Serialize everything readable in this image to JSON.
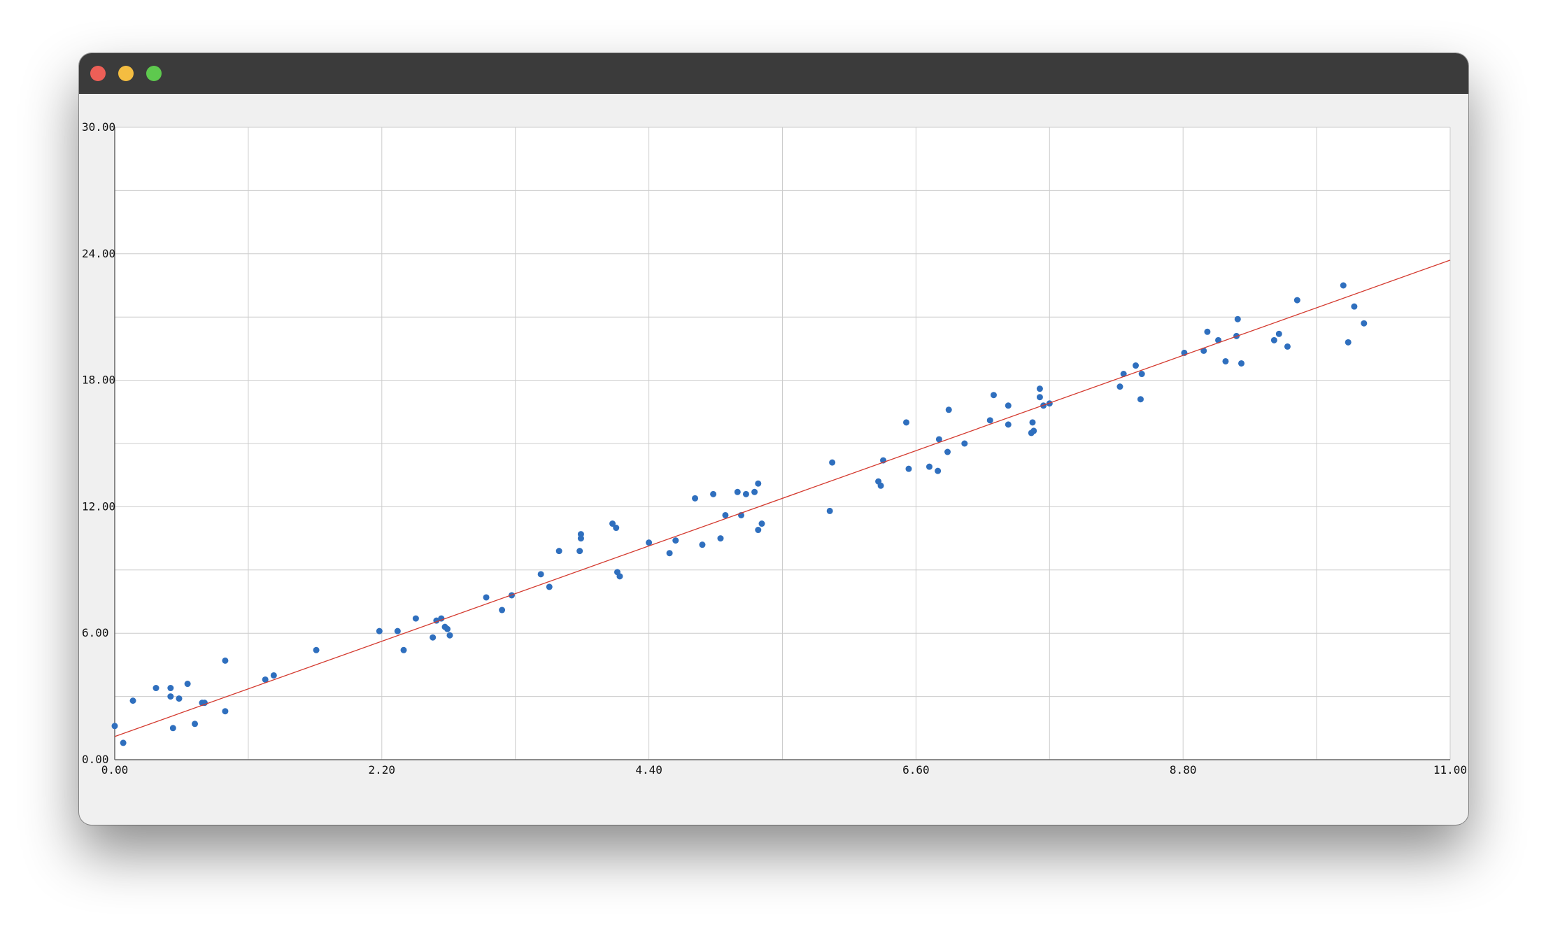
{
  "window": {
    "controls": [
      "close",
      "minimize",
      "maximize"
    ],
    "colors": {
      "close": "#ed5f57",
      "minimize": "#f4bd41",
      "maximize": "#5ec94e",
      "titlebar": "#3b3b3b"
    }
  },
  "chart_data": {
    "type": "scatter",
    "title": "",
    "xlabel": "",
    "ylabel": "",
    "xlim": [
      0,
      11
    ],
    "ylim": [
      0,
      30
    ],
    "x_ticks": [
      "0.00",
      "2.20",
      "4.40",
      "6.60",
      "8.80",
      "11.00"
    ],
    "y_ticks": [
      "0.00",
      "6.00",
      "12.00",
      "18.00",
      "24.00",
      "30.00"
    ],
    "grid": true,
    "colors": {
      "points": "#2f6fbe",
      "fit_line": "#d43a2f",
      "grid": "#cccccc"
    },
    "fit_line": {
      "x": [
        0,
        11
      ],
      "y": [
        1.1,
        23.7
      ]
    },
    "series": [
      {
        "marker": "dot",
        "points": [
          [
            0.0,
            1.6
          ],
          [
            0.07,
            0.8
          ],
          [
            0.15,
            2.8
          ],
          [
            0.34,
            3.4
          ],
          [
            0.46,
            3.4
          ],
          [
            0.46,
            3.0
          ],
          [
            0.48,
            1.5
          ],
          [
            0.53,
            2.9
          ],
          [
            0.6,
            3.6
          ],
          [
            0.66,
            1.7
          ],
          [
            0.72,
            2.7
          ],
          [
            0.74,
            2.7
          ],
          [
            0.91,
            4.7
          ],
          [
            0.91,
            2.3
          ],
          [
            1.24,
            3.8
          ],
          [
            1.31,
            4.0
          ],
          [
            1.66,
            5.2
          ],
          [
            2.18,
            6.1
          ],
          [
            2.33,
            6.1
          ],
          [
            2.38,
            5.2
          ],
          [
            2.48,
            6.7
          ],
          [
            2.62,
            5.8
          ],
          [
            2.65,
            6.6
          ],
          [
            2.69,
            6.7
          ],
          [
            2.72,
            6.3
          ],
          [
            2.74,
            6.2
          ],
          [
            2.76,
            5.9
          ],
          [
            3.06,
            7.7
          ],
          [
            3.19,
            7.1
          ],
          [
            3.27,
            7.8
          ],
          [
            3.51,
            8.8
          ],
          [
            3.58,
            8.2
          ],
          [
            3.66,
            9.9
          ],
          [
            3.83,
            9.9
          ],
          [
            3.84,
            10.5
          ],
          [
            3.84,
            10.7
          ],
          [
            4.1,
            11.2
          ],
          [
            4.13,
            11.0
          ],
          [
            4.14,
            8.9
          ],
          [
            4.16,
            8.7
          ],
          [
            4.4,
            10.3
          ],
          [
            4.57,
            9.8
          ],
          [
            4.62,
            10.4
          ],
          [
            4.78,
            12.4
          ],
          [
            4.84,
            10.2
          ],
          [
            4.93,
            12.6
          ],
          [
            4.99,
            10.5
          ],
          [
            5.03,
            11.6
          ],
          [
            5.13,
            12.7
          ],
          [
            5.16,
            11.6
          ],
          [
            5.2,
            12.6
          ],
          [
            5.27,
            12.7
          ],
          [
            5.3,
            13.1
          ],
          [
            5.3,
            10.9
          ],
          [
            5.33,
            11.2
          ],
          [
            5.89,
            11.8
          ],
          [
            5.91,
            14.1
          ],
          [
            6.29,
            13.2
          ],
          [
            6.31,
            13.0
          ],
          [
            6.33,
            14.2
          ],
          [
            6.52,
            16.0
          ],
          [
            6.54,
            13.8
          ],
          [
            6.71,
            13.9
          ],
          [
            6.78,
            13.7
          ],
          [
            6.79,
            15.2
          ],
          [
            6.86,
            14.6
          ],
          [
            6.87,
            16.6
          ],
          [
            7.0,
            15.0
          ],
          [
            7.21,
            16.1
          ],
          [
            7.24,
            17.3
          ],
          [
            7.36,
            16.8
          ],
          [
            7.36,
            15.9
          ],
          [
            7.55,
            15.5
          ],
          [
            7.57,
            15.6
          ],
          [
            7.56,
            16.0
          ],
          [
            7.62,
            17.6
          ],
          [
            7.62,
            17.2
          ],
          [
            7.65,
            16.8
          ],
          [
            7.7,
            16.9
          ],
          [
            8.28,
            17.7
          ],
          [
            8.31,
            18.3
          ],
          [
            8.41,
            18.7
          ],
          [
            8.45,
            17.1
          ],
          [
            8.46,
            18.3
          ],
          [
            8.81,
            19.3
          ],
          [
            8.97,
            19.4
          ],
          [
            9.0,
            20.3
          ],
          [
            9.09,
            19.9
          ],
          [
            9.15,
            18.9
          ],
          [
            9.24,
            20.1
          ],
          [
            9.25,
            20.9
          ],
          [
            9.28,
            18.8
          ],
          [
            9.55,
            19.9
          ],
          [
            9.59,
            20.2
          ],
          [
            9.66,
            19.6
          ],
          [
            9.74,
            21.8
          ],
          [
            10.12,
            22.5
          ],
          [
            10.16,
            19.8
          ],
          [
            10.21,
            21.5
          ],
          [
            10.29,
            20.7
          ]
        ]
      }
    ]
  }
}
